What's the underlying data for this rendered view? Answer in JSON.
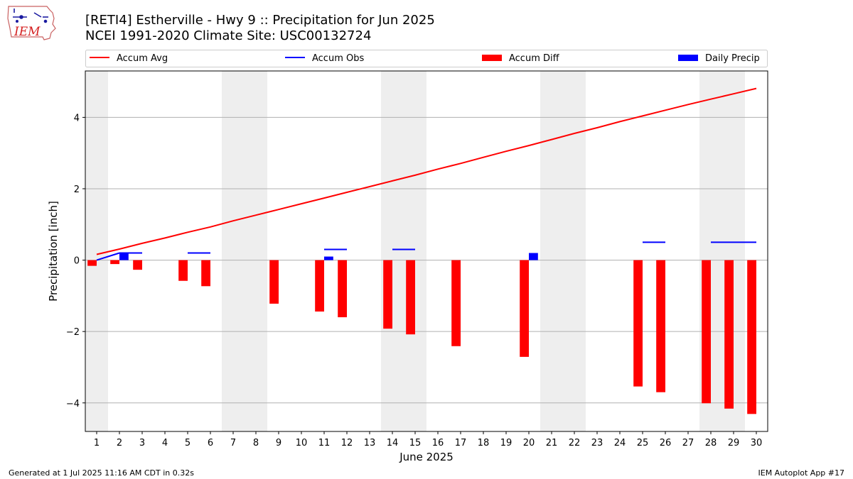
{
  "header": {
    "logo_text": "IEM",
    "title": "[RETI4] Estherville - Hwy 9 :: Precipitation for Jun 2025",
    "subtitle": "NCEI 1991-2020 Climate Site: USC00132724"
  },
  "footer": {
    "generated": "Generated at 1 Jul 2025 11:16 AM CDT in 0.32s",
    "app": "IEM Autoplot App #17"
  },
  "chart_data": {
    "type": "bar",
    "xlabel": "June 2025",
    "ylabel": "Precipitation [inch]",
    "xlim": [
      0.5,
      30.5
    ],
    "ylim": [
      -4.8,
      5.3
    ],
    "yticks": [
      -4,
      -2,
      0,
      2,
      4
    ],
    "ytick_labels": [
      "−4",
      "−2",
      "0",
      "2",
      "4"
    ],
    "grid": "y",
    "legend_position": "top",
    "weekend_shading": [
      [
        0.5,
        1.5
      ],
      [
        6.5,
        8.5
      ],
      [
        13.5,
        15.5
      ],
      [
        20.5,
        22.5
      ],
      [
        27.5,
        29.5
      ]
    ],
    "days": [
      1,
      2,
      3,
      4,
      5,
      6,
      7,
      8,
      9,
      10,
      11,
      12,
      13,
      14,
      15,
      16,
      17,
      18,
      19,
      20,
      21,
      22,
      23,
      24,
      25,
      26,
      27,
      28,
      29,
      30
    ],
    "series": [
      {
        "name": "Accum Avg",
        "kind": "line",
        "color": "#ff0000",
        "values": [
          0.16,
          0.31,
          0.47,
          0.62,
          0.78,
          0.93,
          1.1,
          1.26,
          1.42,
          1.58,
          1.74,
          1.9,
          2.06,
          2.22,
          2.38,
          2.55,
          2.71,
          2.88,
          3.05,
          3.21,
          3.38,
          3.55,
          3.71,
          3.88,
          4.04,
          4.2,
          4.36,
          4.51,
          4.66,
          4.81
        ]
      },
      {
        "name": "Accum Obs",
        "kind": "step",
        "color": "#0000ff",
        "values": [
          0.0,
          0.2,
          0.2,
          0.2,
          0.2,
          0.2,
          0.2,
          0.2,
          0.2,
          0.2,
          0.3,
          0.3,
          0.3,
          0.3,
          0.3,
          0.3,
          0.3,
          0.3,
          0.3,
          0.5,
          0.5,
          0.5,
          0.5,
          0.5,
          0.5,
          0.5,
          0.5,
          0.5,
          0.5,
          0.5
        ],
        "drawn_segments": [
          [
            2,
            3
          ],
          [
            5,
            6
          ],
          [
            11,
            12
          ],
          [
            14,
            15
          ],
          [
            25,
            26
          ],
          [
            28,
            30
          ]
        ]
      },
      {
        "name": "Accum Diff",
        "kind": "bar",
        "color": "#ff0000",
        "values": [
          -0.16,
          -0.11,
          -0.27,
          -0.42,
          -0.58,
          -0.73,
          -0.9,
          -1.06,
          -1.22,
          -1.38,
          -1.44,
          -1.6,
          -1.76,
          -1.92,
          -2.08,
          -2.25,
          -2.41,
          -2.58,
          -2.75,
          -2.71,
          -2.88,
          -3.05,
          -3.21,
          -3.38,
          -3.54,
          -3.7,
          -3.86,
          -4.01,
          -4.16,
          -4.31
        ],
        "drawn_days": [
          1,
          2,
          3,
          5,
          6,
          9,
          11,
          12,
          14,
          15,
          17,
          20,
          25,
          26,
          28,
          29,
          30
        ]
      },
      {
        "name": "Daily Precip",
        "kind": "bar",
        "color": "#0000ff",
        "values": [
          0,
          0.2,
          0,
          0,
          0,
          0,
          0,
          0,
          0,
          0,
          0.1,
          0,
          0,
          0,
          0,
          0,
          0,
          0,
          0,
          0.2,
          0,
          0,
          0,
          0,
          0,
          0,
          0,
          0,
          0,
          0
        ]
      }
    ]
  }
}
